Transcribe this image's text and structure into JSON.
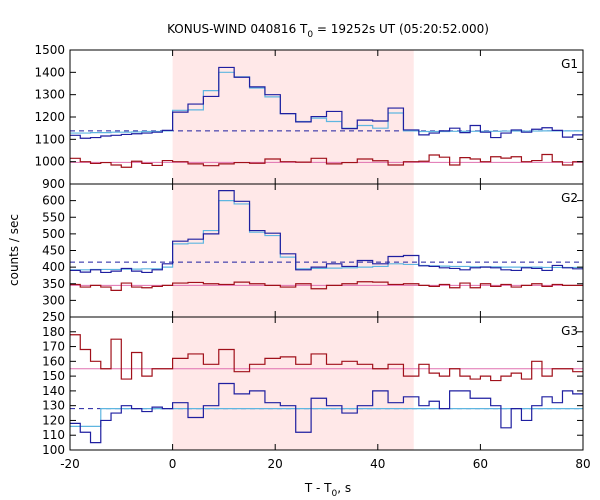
{
  "chart_data": {
    "type": "line",
    "title_main": "KONUS-WIND 040816 T",
    "title_sub": "0",
    "title_rest": " = 19252s UT (05:20:52.000)",
    "xlabel_main": "T - T",
    "xlabel_sub": "0",
    "xlabel_rest": ", s",
    "ylabel": "counts / sec",
    "xlim": [
      -20,
      80
    ],
    "xticks": [
      -20,
      0,
      20,
      40,
      60,
      80
    ],
    "highlight_interval": [
      0,
      47
    ],
    "colors": {
      "signal": "#1f1fa0",
      "model": "#5fb6e0",
      "background_counts": "#a0101a",
      "background_fit": "#e070b0",
      "background_level": "#1f1fa0",
      "highlight": "#ffe8e8"
    },
    "panels": [
      {
        "label": "G1",
        "ylim": [
          900,
          1500
        ],
        "yticks": [
          900,
          1000,
          1100,
          1200,
          1300,
          1400,
          1500
        ],
        "bin_edges": [
          -20,
          -18,
          -16,
          -14,
          -12,
          -10,
          -8,
          -6,
          -4,
          -2,
          0,
          3,
          6,
          9,
          12,
          15,
          18,
          21,
          24,
          27,
          30,
          33,
          36,
          39,
          42,
          45,
          48,
          50,
          52,
          54,
          56,
          58,
          60,
          62,
          64,
          66,
          68,
          70,
          72,
          74,
          76,
          78,
          80
        ],
        "signal": [
          1118,
          1105,
          1108,
          1115,
          1118,
          1122,
          1125,
          1128,
          1132,
          1140,
          1222,
          1258,
          1292,
          1422,
          1378,
          1335,
          1300,
          1215,
          1178,
          1202,
          1225,
          1148,
          1186,
          1182,
          1240,
          1142,
          1120,
          1128,
          1138,
          1150,
          1130,
          1162,
          1132,
          1108,
          1128,
          1142,
          1132,
          1145,
          1152,
          1140,
          1110,
          1120
        ],
        "model": [
          1128,
          1128,
          1130,
          1130,
          1132,
          1132,
          1133,
          1135,
          1135,
          1138,
          1230,
          1232,
          1318,
          1400,
          1380,
          1330,
          1290,
          1215,
          1180,
          1195,
          1180,
          1150,
          1162,
          1150,
          1218,
          1138,
          1135,
          1135,
          1135,
          1136,
          1136,
          1136,
          1136,
          1136,
          1137,
          1137,
          1137,
          1137,
          1138,
          1138,
          1138,
          1138
        ],
        "background_counts": [
          1015,
          1000,
          992,
          996,
          985,
          975,
          1002,
          992,
          983,
          1005,
          1000,
          990,
          982,
          990,
          996,
          993,
          1012,
          1000,
          998,
          1015,
          990,
          996,
          1012,
          1004,
          985,
          1000,
          1002,
          1030,
          1020,
          985,
          1018,
          1012,
          1000,
          1022,
          1016,
          1022,
          1000,
          1005,
          1032,
          1000,
          985,
          1000
        ],
        "background_fit": 997,
        "background_level": 1138
      },
      {
        "label": "G2",
        "ylim": [
          250,
          650
        ],
        "yticks": [
          250,
          300,
          350,
          400,
          450,
          500,
          550,
          600
        ],
        "bin_edges": [
          -20,
          -18,
          -16,
          -14,
          -12,
          -10,
          -8,
          -6,
          -4,
          -2,
          0,
          3,
          6,
          9,
          12,
          15,
          18,
          21,
          24,
          27,
          30,
          33,
          36,
          39,
          42,
          45,
          48,
          50,
          52,
          54,
          56,
          58,
          60,
          62,
          64,
          66,
          68,
          70,
          72,
          74,
          76,
          78,
          80
        ],
        "signal": [
          390,
          385,
          392,
          384,
          388,
          396,
          388,
          384,
          392,
          410,
          478,
          484,
          500,
          630,
          598,
          510,
          502,
          440,
          392,
          400,
          410,
          402,
          420,
          410,
          432,
          435,
          404,
          402,
          398,
          396,
          392,
          398,
          400,
          398,
          392,
          390,
          398,
          396,
          390,
          405,
          398,
          395
        ],
        "model": [
          392,
          392,
          393,
          393,
          393,
          394,
          394,
          395,
          395,
          400,
          470,
          472,
          510,
          600,
          590,
          505,
          495,
          430,
          395,
          396,
          397,
          398,
          400,
          402,
          410,
          408,
          405,
          404,
          403,
          402,
          402,
          401,
          401,
          401,
          400,
          400,
          400,
          400,
          399,
          399,
          399,
          399
        ],
        "background_counts": [
          348,
          340,
          345,
          340,
          330,
          352,
          340,
          338,
          342,
          345,
          352,
          354,
          350,
          348,
          355,
          350,
          345,
          340,
          350,
          335,
          345,
          350,
          356,
          355,
          348,
          350,
          345,
          342,
          348,
          338,
          352,
          338,
          350,
          342,
          348,
          340,
          345,
          350,
          342,
          348,
          345,
          345
        ],
        "background_fit": 345,
        "background_level": 415
      },
      {
        "label": "G3",
        "ylim": [
          100,
          190
        ],
        "yticks": [
          100,
          110,
          120,
          130,
          140,
          150,
          160,
          170,
          180
        ],
        "bin_edges": [
          -20,
          -18,
          -16,
          -14,
          -12,
          -10,
          -8,
          -6,
          -4,
          -2,
          0,
          3,
          6,
          9,
          12,
          15,
          18,
          21,
          24,
          27,
          30,
          33,
          36,
          39,
          42,
          45,
          48,
          50,
          52,
          54,
          56,
          58,
          60,
          62,
          64,
          66,
          68,
          70,
          72,
          74,
          76,
          78,
          80
        ],
        "signal": [
          118,
          112,
          105,
          120,
          125,
          130,
          128,
          126,
          129,
          128,
          132,
          122,
          130,
          145,
          138,
          140,
          132,
          130,
          112,
          135,
          130,
          125,
          130,
          140,
          132,
          136,
          130,
          133,
          128,
          140,
          140,
          135,
          135,
          130,
          115,
          128,
          120,
          130,
          136,
          132,
          140,
          138
        ],
        "model": [
          116,
          116,
          116,
          128,
          128,
          128,
          128,
          128,
          128,
          128,
          128,
          128,
          128,
          128,
          128,
          128,
          128,
          128,
          128,
          128,
          128,
          128,
          128,
          128,
          128,
          128,
          128,
          128,
          128,
          128,
          128,
          128,
          128,
          128,
          128,
          128,
          128,
          128,
          128,
          128,
          128,
          128
        ],
        "background_counts": [
          178,
          168,
          160,
          155,
          175,
          148,
          166,
          150,
          155,
          155,
          162,
          165,
          158,
          168,
          153,
          158,
          162,
          163,
          158,
          165,
          158,
          160,
          158,
          155,
          158,
          150,
          158,
          152,
          150,
          155,
          150,
          148,
          150,
          147,
          150,
          152,
          148,
          160,
          150,
          155,
          155,
          153
        ],
        "background_fit": 155,
        "background_level": 128
      }
    ]
  }
}
